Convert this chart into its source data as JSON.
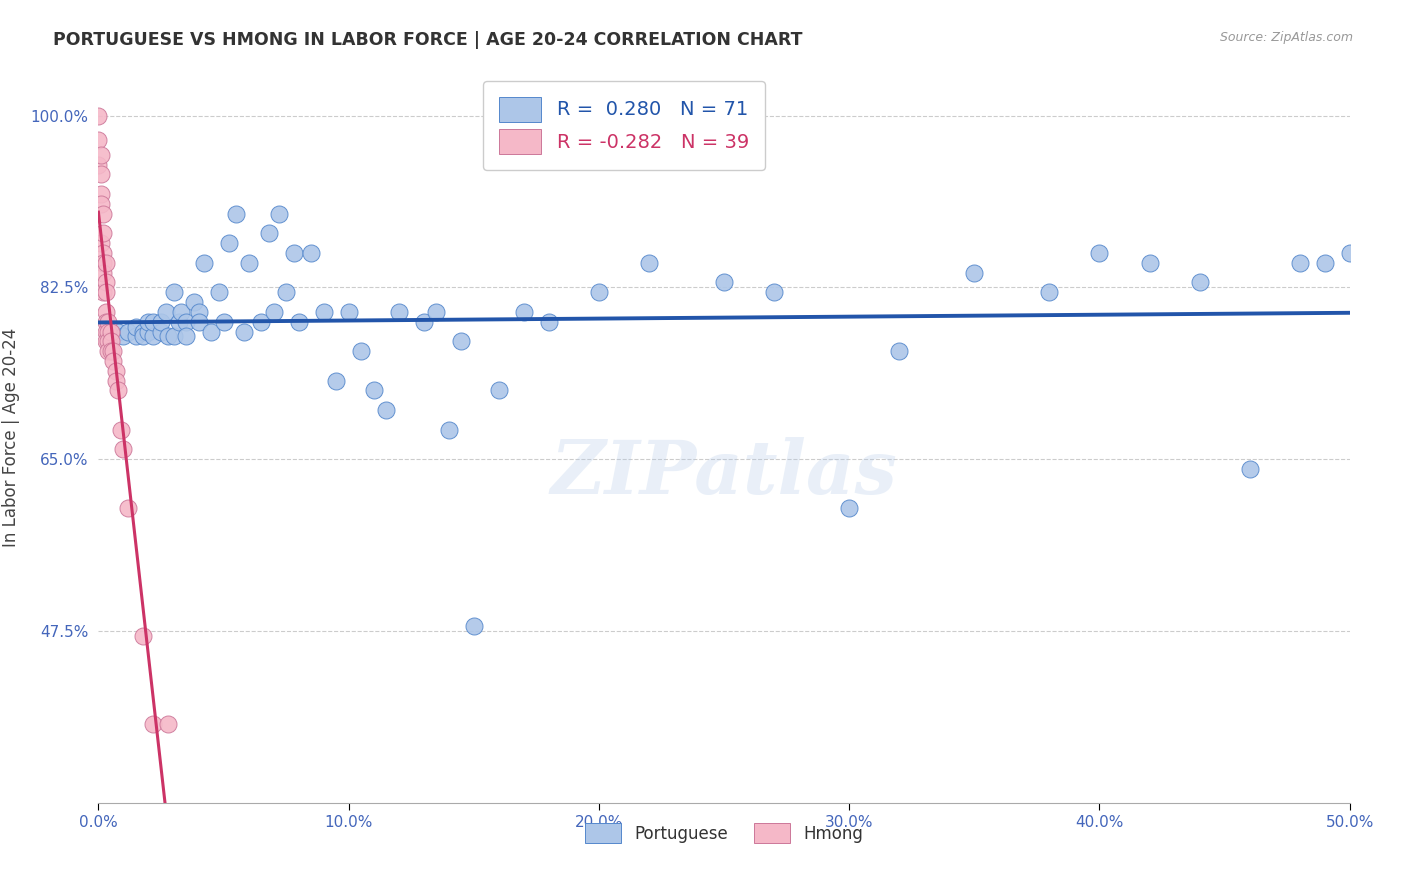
{
  "title": "PORTUGUESE VS HMONG IN LABOR FORCE | AGE 20-24 CORRELATION CHART",
  "source": "Source: ZipAtlas.com",
  "ylabel": "In Labor Force | Age 20-24",
  "xlim": [
    0.0,
    0.5
  ],
  "ylim": [
    0.3,
    1.045
  ],
  "xtick_labels": [
    "0.0%",
    "10.0%",
    "20.0%",
    "30.0%",
    "40.0%",
    "50.0%"
  ],
  "xtick_vals": [
    0.0,
    0.1,
    0.2,
    0.3,
    0.4,
    0.5
  ],
  "ytick_labels": [
    "47.5%",
    "65.0%",
    "82.5%",
    "100.0%"
  ],
  "ytick_vals": [
    0.475,
    0.65,
    0.825,
    1.0
  ],
  "portuguese_R": 0.28,
  "portuguese_N": 71,
  "hmong_R": -0.282,
  "hmong_N": 39,
  "blue_color": "#adc6e8",
  "blue_edge_color": "#5588cc",
  "blue_line_color": "#2255aa",
  "pink_color": "#f5b8c8",
  "pink_edge_color": "#cc7799",
  "pink_line_color": "#cc3366",
  "pink_dash_color": "#e8a0b8",
  "watermark": "ZIPatlas",
  "portuguese_x": [
    0.005,
    0.008,
    0.01,
    0.012,
    0.015,
    0.015,
    0.018,
    0.018,
    0.02,
    0.02,
    0.022,
    0.022,
    0.025,
    0.025,
    0.027,
    0.028,
    0.03,
    0.03,
    0.032,
    0.033,
    0.035,
    0.035,
    0.038,
    0.04,
    0.04,
    0.042,
    0.045,
    0.048,
    0.05,
    0.052,
    0.055,
    0.058,
    0.06,
    0.065,
    0.068,
    0.07,
    0.072,
    0.075,
    0.078,
    0.08,
    0.085,
    0.09,
    0.095,
    0.1,
    0.105,
    0.11,
    0.115,
    0.12,
    0.13,
    0.135,
    0.14,
    0.145,
    0.15,
    0.16,
    0.17,
    0.18,
    0.2,
    0.22,
    0.25,
    0.27,
    0.3,
    0.32,
    0.35,
    0.38,
    0.4,
    0.42,
    0.44,
    0.46,
    0.48,
    0.49,
    0.5
  ],
  "portuguese_y": [
    0.775,
    0.78,
    0.775,
    0.78,
    0.775,
    0.785,
    0.78,
    0.775,
    0.78,
    0.79,
    0.775,
    0.79,
    0.78,
    0.79,
    0.8,
    0.775,
    0.775,
    0.82,
    0.79,
    0.8,
    0.79,
    0.775,
    0.81,
    0.8,
    0.79,
    0.85,
    0.78,
    0.82,
    0.79,
    0.87,
    0.9,
    0.78,
    0.85,
    0.79,
    0.88,
    0.8,
    0.9,
    0.82,
    0.86,
    0.79,
    0.86,
    0.8,
    0.73,
    0.8,
    0.76,
    0.72,
    0.7,
    0.8,
    0.79,
    0.8,
    0.68,
    0.77,
    0.48,
    0.72,
    0.8,
    0.79,
    0.82,
    0.85,
    0.83,
    0.82,
    0.6,
    0.76,
    0.84,
    0.82,
    0.86,
    0.85,
    0.83,
    0.64,
    0.85,
    0.85,
    0.86
  ],
  "hmong_x": [
    0.0,
    0.0,
    0.0,
    0.001,
    0.001,
    0.001,
    0.001,
    0.001,
    0.002,
    0.002,
    0.002,
    0.002,
    0.002,
    0.002,
    0.003,
    0.003,
    0.003,
    0.003,
    0.003,
    0.003,
    0.003,
    0.004,
    0.004,
    0.004,
    0.004,
    0.005,
    0.005,
    0.005,
    0.006,
    0.006,
    0.007,
    0.007,
    0.008,
    0.009,
    0.01,
    0.012,
    0.018,
    0.022,
    0.028
  ],
  "hmong_y": [
    1.0,
    0.975,
    0.95,
    0.96,
    0.94,
    0.92,
    0.91,
    0.87,
    0.9,
    0.88,
    0.86,
    0.85,
    0.84,
    0.82,
    0.85,
    0.83,
    0.82,
    0.8,
    0.79,
    0.78,
    0.77,
    0.79,
    0.78,
    0.77,
    0.76,
    0.78,
    0.77,
    0.76,
    0.76,
    0.75,
    0.74,
    0.73,
    0.72,
    0.68,
    0.66,
    0.6,
    0.47,
    0.38,
    0.38
  ],
  "hmong_line_x_start": 0.0,
  "hmong_line_x_solid_end": 0.028,
  "hmong_line_x_dash_end": 0.16,
  "port_line_x_start": 0.0,
  "port_line_x_end": 0.5
}
